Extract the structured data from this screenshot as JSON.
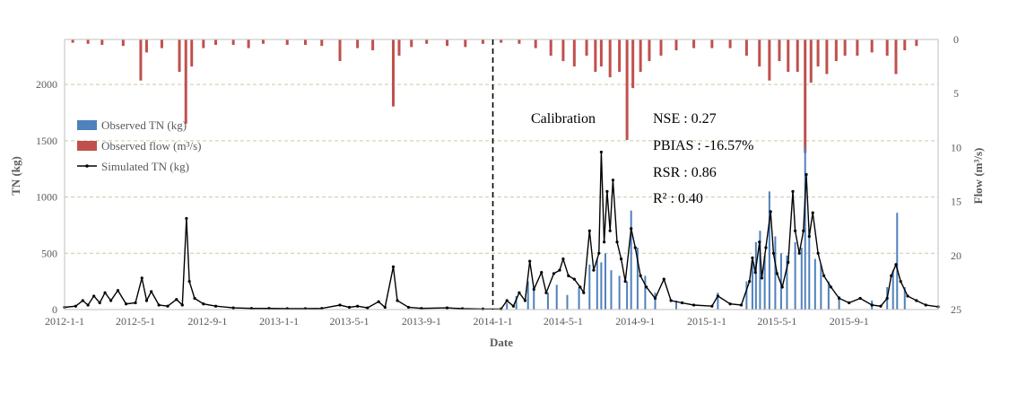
{
  "chart_data": {
    "type": "bar",
    "xlabel": "Date",
    "ylabel_left": "TN (kg)",
    "ylabel_right": "Flow (m³/s)",
    "y_left_range": [
      0,
      2400
    ],
    "y_left_ticks": [
      "0",
      "500",
      "1000",
      "1500",
      "2000"
    ],
    "y_right_range": [
      25,
      0
    ],
    "y_right_ticks": [
      "0",
      "5",
      "10",
      "15",
      "20",
      "25"
    ],
    "x_ticks": [
      "2012-1-1",
      "2012-5-1",
      "2012-9-1",
      "2013-1-1",
      "2013-5-1",
      "2013-9-1",
      "2014-1-1",
      "2014-5-1",
      "2014-9-1",
      "2015-1-1",
      "2015-5-1",
      "2015-9-1"
    ],
    "x_range": [
      "2012-01-01",
      "2016-01-31"
    ],
    "grid": "horizontal dashed",
    "legend_position": "left",
    "divider_date": "2014-01-01",
    "annotations": {
      "period": "Calibration",
      "nse": "NSE : 0.27",
      "pbias": "PBIAS : -16.57%",
      "rsr": "RSR : 0.86",
      "r2": "R² : 0.40"
    },
    "series": [
      {
        "name": "Observed TN (kg)",
        "kind": "bar",
        "axis": "left",
        "color": "#4f81bd",
        "points": [
          [
            "2014-01-25",
            60
          ],
          [
            "2014-02-10",
            120
          ],
          [
            "2014-03-02",
            250
          ],
          [
            "2014-03-12",
            180
          ],
          [
            "2014-04-05",
            150
          ],
          [
            "2014-04-20",
            220
          ],
          [
            "2014-05-08",
            130
          ],
          [
            "2014-05-28",
            200
          ],
          [
            "2014-06-15",
            400
          ],
          [
            "2014-06-28",
            450
          ],
          [
            "2014-07-05",
            420
          ],
          [
            "2014-07-12",
            500
          ],
          [
            "2014-07-22",
            350
          ],
          [
            "2014-08-05",
            300
          ],
          [
            "2014-08-18",
            250
          ],
          [
            "2014-08-25",
            880
          ],
          [
            "2014-09-05",
            550
          ],
          [
            "2014-09-18",
            300
          ],
          [
            "2014-10-05",
            150
          ],
          [
            "2014-11-10",
            80
          ],
          [
            "2015-01-20",
            150
          ],
          [
            "2015-03-10",
            250
          ],
          [
            "2015-03-20",
            450
          ],
          [
            "2015-03-26",
            600
          ],
          [
            "2015-04-02",
            700
          ],
          [
            "2015-04-10",
            480
          ],
          [
            "2015-04-18",
            1050
          ],
          [
            "2015-04-28",
            650
          ],
          [
            "2015-05-08",
            500
          ],
          [
            "2015-05-18",
            480
          ],
          [
            "2015-06-01",
            600
          ],
          [
            "2015-06-12",
            550
          ],
          [
            "2015-06-18",
            1450
          ],
          [
            "2015-06-25",
            700
          ],
          [
            "2015-07-05",
            450
          ],
          [
            "2015-07-15",
            400
          ],
          [
            "2015-07-28",
            250
          ],
          [
            "2015-08-15",
            120
          ],
          [
            "2015-10-10",
            80
          ],
          [
            "2015-11-05",
            200
          ],
          [
            "2015-11-15",
            350
          ],
          [
            "2015-11-22",
            860
          ],
          [
            "2015-12-05",
            200
          ]
        ]
      },
      {
        "name": "Observed flow (m³/s)",
        "kind": "bar",
        "axis": "right",
        "color": "#c0504d",
        "points": [
          [
            "2012-01-15",
            0.3
          ],
          [
            "2012-02-10",
            0.4
          ],
          [
            "2012-03-05",
            0.5
          ],
          [
            "2012-04-10",
            0.6
          ],
          [
            "2012-05-10",
            3.8
          ],
          [
            "2012-05-20",
            1.2
          ],
          [
            "2012-06-15",
            0.8
          ],
          [
            "2012-07-15",
            3.0
          ],
          [
            "2012-07-26",
            7.8
          ],
          [
            "2012-08-05",
            2.5
          ],
          [
            "2012-08-25",
            0.8
          ],
          [
            "2012-09-15",
            0.5
          ],
          [
            "2012-10-15",
            0.5
          ],
          [
            "2012-11-10",
            0.8
          ],
          [
            "2012-12-05",
            0.4
          ],
          [
            "2013-01-15",
            0.5
          ],
          [
            "2013-02-15",
            0.5
          ],
          [
            "2013-03-15",
            0.6
          ],
          [
            "2013-04-15",
            2.0
          ],
          [
            "2013-05-15",
            0.8
          ],
          [
            "2013-06-10",
            1.0
          ],
          [
            "2013-07-15",
            6.2
          ],
          [
            "2013-07-25",
            1.5
          ],
          [
            "2013-08-15",
            0.7
          ],
          [
            "2013-09-10",
            0.4
          ],
          [
            "2013-10-15",
            0.6
          ],
          [
            "2013-11-15",
            0.7
          ],
          [
            "2013-12-15",
            0.4
          ],
          [
            "2014-01-15",
            0.3
          ],
          [
            "2014-02-15",
            0.4
          ],
          [
            "2014-03-15",
            0.8
          ],
          [
            "2014-04-10",
            1.5
          ],
          [
            "2014-05-01",
            2.0
          ],
          [
            "2014-05-20",
            2.5
          ],
          [
            "2014-06-10",
            1.5
          ],
          [
            "2014-06-25",
            3.0
          ],
          [
            "2014-07-05",
            2.5
          ],
          [
            "2014-07-20",
            3.5
          ],
          [
            "2014-08-05",
            3.0
          ],
          [
            "2014-08-18",
            9.3
          ],
          [
            "2014-08-28",
            4.5
          ],
          [
            "2014-09-10",
            3.0
          ],
          [
            "2014-09-25",
            2.0
          ],
          [
            "2014-10-15",
            1.5
          ],
          [
            "2014-11-10",
            1.0
          ],
          [
            "2014-12-10",
            0.8
          ],
          [
            "2015-01-10",
            0.8
          ],
          [
            "2015-02-10",
            0.8
          ],
          [
            "2015-03-10",
            1.5
          ],
          [
            "2015-04-01",
            2.5
          ],
          [
            "2015-04-18",
            3.8
          ],
          [
            "2015-05-05",
            2.0
          ],
          [
            "2015-05-20",
            3.0
          ],
          [
            "2015-06-05",
            3.0
          ],
          [
            "2015-06-18",
            10.5
          ],
          [
            "2015-06-28",
            4.0
          ],
          [
            "2015-07-10",
            2.5
          ],
          [
            "2015-07-25",
            3.2
          ],
          [
            "2015-08-10",
            2.0
          ],
          [
            "2015-08-25",
            1.5
          ],
          [
            "2015-09-15",
            1.5
          ],
          [
            "2015-10-10",
            1.2
          ],
          [
            "2015-11-05",
            1.5
          ],
          [
            "2015-11-20",
            3.2
          ],
          [
            "2015-12-05",
            1.0
          ],
          [
            "2015-12-25",
            0.6
          ]
        ]
      },
      {
        "name": "Simulated TN (kg)",
        "kind": "line",
        "axis": "left",
        "color": "#000000",
        "points": [
          [
            "2012-01-01",
            20
          ],
          [
            "2012-01-20",
            30
          ],
          [
            "2012-02-01",
            80
          ],
          [
            "2012-02-10",
            40
          ],
          [
            "2012-02-20",
            120
          ],
          [
            "2012-03-01",
            60
          ],
          [
            "2012-03-10",
            150
          ],
          [
            "2012-03-20",
            80
          ],
          [
            "2012-04-01",
            170
          ],
          [
            "2012-04-15",
            50
          ],
          [
            "2012-05-01",
            60
          ],
          [
            "2012-05-12",
            280
          ],
          [
            "2012-05-20",
            80
          ],
          [
            "2012-05-28",
            160
          ],
          [
            "2012-06-10",
            40
          ],
          [
            "2012-06-25",
            30
          ],
          [
            "2012-07-10",
            90
          ],
          [
            "2012-07-20",
            40
          ],
          [
            "2012-07-27",
            810
          ],
          [
            "2012-08-01",
            250
          ],
          [
            "2012-08-10",
            100
          ],
          [
            "2012-08-25",
            50
          ],
          [
            "2012-09-15",
            30
          ],
          [
            "2012-10-15",
            15
          ],
          [
            "2012-11-15",
            10
          ],
          [
            "2012-12-15",
            10
          ],
          [
            "2013-01-15",
            8
          ],
          [
            "2013-02-15",
            8
          ],
          [
            "2013-03-15",
            10
          ],
          [
            "2013-04-15",
            40
          ],
          [
            "2013-05-01",
            20
          ],
          [
            "2013-05-15",
            30
          ],
          [
            "2013-06-01",
            15
          ],
          [
            "2013-06-20",
            70
          ],
          [
            "2013-07-01",
            20
          ],
          [
            "2013-07-15",
            380
          ],
          [
            "2013-07-22",
            80
          ],
          [
            "2013-08-10",
            20
          ],
          [
            "2013-09-01",
            10
          ],
          [
            "2013-10-15",
            15
          ],
          [
            "2013-11-10",
            8
          ],
          [
            "2013-12-15",
            5
          ],
          [
            "2014-01-15",
            5
          ],
          [
            "2014-01-25",
            80
          ],
          [
            "2014-02-05",
            30
          ],
          [
            "2014-02-15",
            150
          ],
          [
            "2014-02-25",
            80
          ],
          [
            "2014-03-05",
            430
          ],
          [
            "2014-03-12",
            180
          ],
          [
            "2014-03-25",
            330
          ],
          [
            "2014-04-02",
            150
          ],
          [
            "2014-04-15",
            320
          ],
          [
            "2014-04-25",
            350
          ],
          [
            "2014-05-01",
            450
          ],
          [
            "2014-05-10",
            300
          ],
          [
            "2014-05-20",
            270
          ],
          [
            "2014-05-30",
            200
          ],
          [
            "2014-06-05",
            150
          ],
          [
            "2014-06-15",
            700
          ],
          [
            "2014-06-22",
            350
          ],
          [
            "2014-07-01",
            500
          ],
          [
            "2014-07-05",
            1400
          ],
          [
            "2014-07-10",
            600
          ],
          [
            "2014-07-15",
            1050
          ],
          [
            "2014-07-20",
            700
          ],
          [
            "2014-07-25",
            1150
          ],
          [
            "2014-08-01",
            600
          ],
          [
            "2014-08-08",
            450
          ],
          [
            "2014-08-15",
            250
          ],
          [
            "2014-08-25",
            720
          ],
          [
            "2014-09-01",
            550
          ],
          [
            "2014-09-10",
            300
          ],
          [
            "2014-09-20",
            200
          ],
          [
            "2014-10-05",
            100
          ],
          [
            "2014-10-20",
            270
          ],
          [
            "2014-11-01",
            80
          ],
          [
            "2014-11-20",
            60
          ],
          [
            "2014-12-10",
            40
          ],
          [
            "2015-01-10",
            30
          ],
          [
            "2015-01-20",
            120
          ],
          [
            "2015-02-10",
            50
          ],
          [
            "2015-03-01",
            40
          ],
          [
            "2015-03-15",
            250
          ],
          [
            "2015-03-20",
            460
          ],
          [
            "2015-03-25",
            330
          ],
          [
            "2015-04-01",
            600
          ],
          [
            "2015-04-05",
            280
          ],
          [
            "2015-04-12",
            550
          ],
          [
            "2015-04-20",
            870
          ],
          [
            "2015-04-25",
            500
          ],
          [
            "2015-05-01",
            320
          ],
          [
            "2015-05-10",
            200
          ],
          [
            "2015-05-20",
            420
          ],
          [
            "2015-05-28",
            1050
          ],
          [
            "2015-06-01",
            700
          ],
          [
            "2015-06-08",
            500
          ],
          [
            "2015-06-15",
            700
          ],
          [
            "2015-06-20",
            1200
          ],
          [
            "2015-06-25",
            650
          ],
          [
            "2015-07-01",
            860
          ],
          [
            "2015-07-10",
            500
          ],
          [
            "2015-07-20",
            300
          ],
          [
            "2015-08-01",
            200
          ],
          [
            "2015-08-15",
            100
          ],
          [
            "2015-09-01",
            60
          ],
          [
            "2015-09-20",
            100
          ],
          [
            "2015-10-10",
            40
          ],
          [
            "2015-10-25",
            30
          ],
          [
            "2015-11-05",
            100
          ],
          [
            "2015-11-12",
            300
          ],
          [
            "2015-11-20",
            400
          ],
          [
            "2015-11-28",
            250
          ],
          [
            "2015-12-10",
            120
          ],
          [
            "2015-12-25",
            80
          ],
          [
            "2016-01-10",
            40
          ],
          [
            "2016-01-31",
            25
          ]
        ]
      }
    ]
  }
}
